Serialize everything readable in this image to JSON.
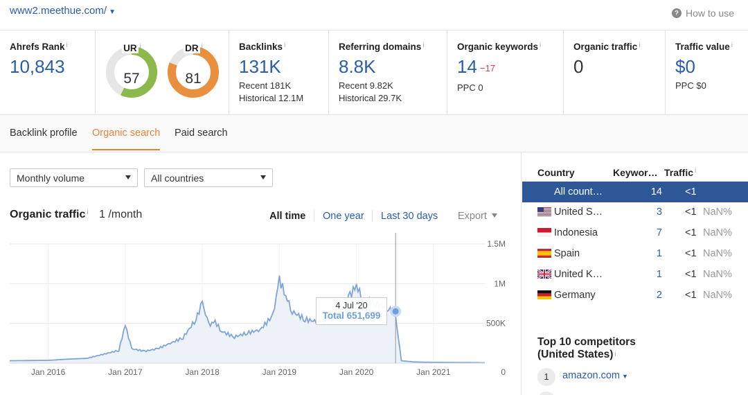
{
  "header": {
    "domain": "www2.meethue.com/",
    "how_to_use": "How to use"
  },
  "metrics": {
    "ahrefs_rank": {
      "label": "Ahrefs Rank",
      "value": "10,843"
    },
    "ur": {
      "label": "UR",
      "value": "57",
      "fill": 0.57,
      "color": "#8cb84c"
    },
    "dr": {
      "label": "DR",
      "value": "81",
      "fill": 0.81,
      "color": "#e8903e"
    },
    "backlinks": {
      "label": "Backlinks",
      "value": "131K",
      "recent": "Recent 181K",
      "historical": "Historical 12.1M"
    },
    "referring_domains": {
      "label": "Referring domains",
      "value": "8.8K",
      "recent": "Recent 9.82K",
      "historical": "Historical 29.7K"
    },
    "organic_keywords": {
      "label": "Organic keywords",
      "value": "14",
      "delta": "−17",
      "ppc": "PPC 0"
    },
    "organic_traffic": {
      "label": "Organic traffic",
      "value": "0"
    },
    "traffic_value": {
      "label": "Traffic value",
      "value": "$0",
      "ppc": "PPC $0"
    }
  },
  "tabs": [
    "Backlink profile",
    "Organic search",
    "Paid search"
  ],
  "active_tab": "Organic search",
  "filters": {
    "volume": "Monthly volume",
    "countries": "All countries"
  },
  "organic_traffic": {
    "title": "Organic traffic",
    "value": "1 /month",
    "ranges": [
      "All time",
      "One year",
      "Last 30 days"
    ],
    "active_range": "All time",
    "export": "Export"
  },
  "tooltip": {
    "date": "4 Jul '20",
    "total": "Total 651,699"
  },
  "country_table": {
    "headers": {
      "country": "Country",
      "keywords": "Keywor…",
      "traffic": "Traffic"
    },
    "rows": [
      {
        "flag": "",
        "name": "All count…",
        "keywords": "14",
        "traffic": "<1",
        "pct": "",
        "selected": true
      },
      {
        "flag": "us",
        "name": "United S…",
        "keywords": "3",
        "traffic": "<1",
        "pct": "NaN%",
        "selected": false
      },
      {
        "flag": "id",
        "name": "Indonesia",
        "keywords": "7",
        "traffic": "<1",
        "pct": "NaN%",
        "selected": false
      },
      {
        "flag": "es",
        "name": "Spain",
        "keywords": "1",
        "traffic": "<1",
        "pct": "NaN%",
        "selected": false
      },
      {
        "flag": "gb",
        "name": "United K…",
        "keywords": "1",
        "traffic": "<1",
        "pct": "NaN%",
        "selected": false
      },
      {
        "flag": "de",
        "name": "Germany",
        "keywords": "2",
        "traffic": "<1",
        "pct": "NaN%",
        "selected": false
      }
    ]
  },
  "competitors": {
    "title_line1": "Top 10 competitors",
    "title_line2": "(United States)",
    "items": [
      {
        "rank": "1",
        "domain": "amazon.com"
      }
    ]
  },
  "chart_data": {
    "type": "area",
    "title": "Organic traffic",
    "x_tick_labels": [
      "Jan 2016",
      "Jan 2017",
      "Jan 2018",
      "Jan 2019",
      "Jan 2020",
      "Jan 2021"
    ],
    "y_tick_labels": [
      "1.5M",
      "1M",
      "500K",
      "0"
    ],
    "ylim": [
      0,
      1500000
    ],
    "xlim": [
      "2015-07",
      "2021-09"
    ],
    "highlight": {
      "x": "2020-07-04",
      "y": 651699
    },
    "series": [
      {
        "color": "#7ea4d8",
        "points": [
          [
            "2015-07",
            30000
          ],
          [
            "2016-01",
            35000
          ],
          [
            "2016-04",
            50000
          ],
          [
            "2016-07",
            60000
          ],
          [
            "2016-10",
            120000
          ],
          [
            "2016-12",
            160000
          ],
          [
            "2017-01",
            480000
          ],
          [
            "2017-02",
            180000
          ],
          [
            "2017-04",
            150000
          ],
          [
            "2017-06",
            180000
          ],
          [
            "2017-08",
            250000
          ],
          [
            "2017-10",
            320000
          ],
          [
            "2017-12",
            550000
          ],
          [
            "2018-01",
            760000
          ],
          [
            "2018-02",
            480000
          ],
          [
            "2018-03",
            520000
          ],
          [
            "2018-04",
            400000
          ],
          [
            "2018-06",
            330000
          ],
          [
            "2018-08",
            380000
          ],
          [
            "2018-10",
            420000
          ],
          [
            "2018-12",
            600000
          ],
          [
            "2019-01",
            1050000
          ],
          [
            "2019-02",
            850000
          ],
          [
            "2019-03",
            650000
          ],
          [
            "2019-05",
            550000
          ],
          [
            "2019-07",
            520000
          ],
          [
            "2019-10",
            580000
          ],
          [
            "2019-12",
            850000
          ],
          [
            "2020-01",
            980000
          ],
          [
            "2020-02",
            800000
          ],
          [
            "2020-04",
            750000
          ],
          [
            "2020-06",
            680000
          ],
          [
            "2020-07",
            651699
          ],
          [
            "2020-08",
            30000
          ],
          [
            "2020-10",
            15000
          ],
          [
            "2021-01",
            10000
          ],
          [
            "2021-05",
            8000
          ],
          [
            "2021-09",
            5000
          ]
        ]
      }
    ]
  }
}
